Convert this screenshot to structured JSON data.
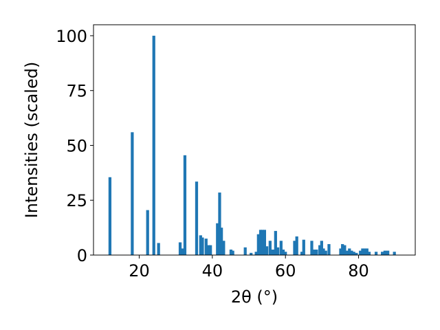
{
  "chart_data": {
    "type": "bar",
    "title": "",
    "xlabel": "2θ (°)",
    "ylabel": "Intensities (scaled)",
    "xlim": [
      7.5,
      95.5
    ],
    "ylim": [
      0,
      105
    ],
    "xticks": [
      20,
      40,
      60,
      80
    ],
    "yticks": [
      0,
      25,
      50,
      75,
      100
    ],
    "grid": false,
    "color": "#1f77b4",
    "bar_width": 0.8,
    "x": [
      12.0,
      18.1,
      22.3,
      24.0,
      25.3,
      31.2,
      31.8,
      32.5,
      35.7,
      36.8,
      37.3,
      38.3,
      39.0,
      39.5,
      41.4,
      42.0,
      42.5,
      43.1,
      45.1,
      45.6,
      49.0,
      50.6,
      52.0,
      52.6,
      53.2,
      53.7,
      54.3,
      54.9,
      55.8,
      56.6,
      57.3,
      57.9,
      58.8,
      59.4,
      60.0,
      62.5,
      63.1,
      64.5,
      65.0,
      67.2,
      67.8,
      68.5,
      69.4,
      69.9,
      70.4,
      71.0,
      71.9,
      75.1,
      75.6,
      76.2,
      77.0,
      77.5,
      78.1,
      78.7,
      79.4,
      80.5,
      81.1,
      81.7,
      82.3,
      82.9,
      84.8,
      86.5,
      87.2,
      88.0,
      89.8
    ],
    "values": [
      35.5,
      56,
      20.5,
      100,
      5.5,
      5.8,
      3,
      45.5,
      33.5,
      9,
      8,
      7.5,
      4.5,
      4.5,
      14.5,
      28.5,
      12.5,
      6.5,
      2.5,
      2,
      3.5,
      1,
      1.5,
      9.5,
      11.5,
      11.5,
      11.5,
      4,
      6.5,
      2.5,
      11,
      3.5,
      6.5,
      2.5,
      1.5,
      6.5,
      8.5,
      1.5,
      7,
      6.5,
      2.5,
      2.5,
      4.5,
      6.5,
      3,
      2,
      5,
      3,
      5,
      4.5,
      2,
      3,
      2,
      1.5,
      1,
      2,
      3,
      3,
      3,
      1.5,
      1.5,
      1.5,
      2,
      2,
      1.5
    ]
  }
}
